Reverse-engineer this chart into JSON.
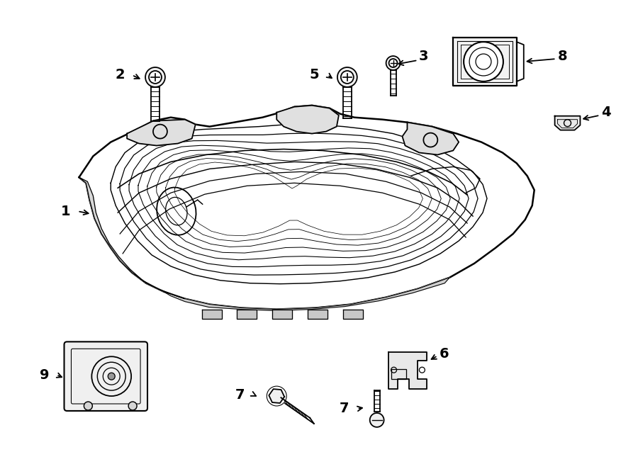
{
  "background_color": "#ffffff",
  "line_color": "#000000",
  "line_width": 1.3,
  "fig_width": 9.0,
  "fig_height": 6.62
}
